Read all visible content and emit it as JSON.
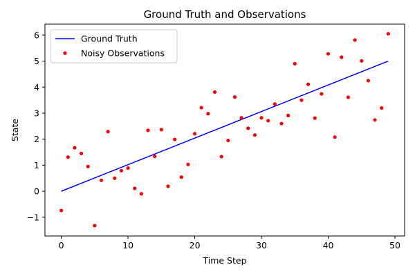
{
  "chart_data": {
    "type": "line",
    "title": "Ground Truth and Observations",
    "xlabel": "Time Step",
    "ylabel": "State",
    "xlim": [
      -2.45,
      51.45
    ],
    "ylim": [
      -1.72,
      6.42
    ],
    "xticks": [
      0,
      10,
      20,
      30,
      40,
      50
    ],
    "yticks": [
      -1,
      0,
      1,
      2,
      3,
      4,
      5,
      6
    ],
    "grid": false,
    "legend_position": "top-left",
    "series": [
      {
        "name": "Ground Truth",
        "kind": "line",
        "color": "#0000ff",
        "x": [
          0,
          49
        ],
        "y": [
          0,
          5
        ]
      },
      {
        "name": "Noisy Observations",
        "kind": "scatter",
        "color": "#ff0000",
        "x": [
          0,
          1,
          2,
          3,
          4,
          5,
          6,
          7,
          8,
          9,
          10,
          11,
          12,
          13,
          14,
          15,
          16,
          17,
          18,
          19,
          20,
          21,
          22,
          23,
          24,
          25,
          26,
          27,
          28,
          29,
          30,
          31,
          32,
          33,
          34,
          35,
          36,
          37,
          38,
          39,
          40,
          41,
          42,
          43,
          44,
          45,
          46,
          47,
          48,
          49
        ],
        "y": [
          -0.74,
          1.31,
          1.67,
          1.45,
          0.95,
          -1.32,
          0.42,
          2.29,
          0.5,
          0.79,
          0.89,
          0.11,
          -0.1,
          2.34,
          1.34,
          2.37,
          0.19,
          1.99,
          0.54,
          1.03,
          2.21,
          3.21,
          2.98,
          3.81,
          1.33,
          1.95,
          3.62,
          2.82,
          2.42,
          2.16,
          2.82,
          2.71,
          3.35,
          2.6,
          2.91,
          4.9,
          3.5,
          4.11,
          2.81,
          3.74,
          5.28,
          2.08,
          5.15,
          3.61,
          5.81,
          5.01,
          4.25,
          2.74,
          3.2,
          6.05
        ]
      }
    ]
  }
}
